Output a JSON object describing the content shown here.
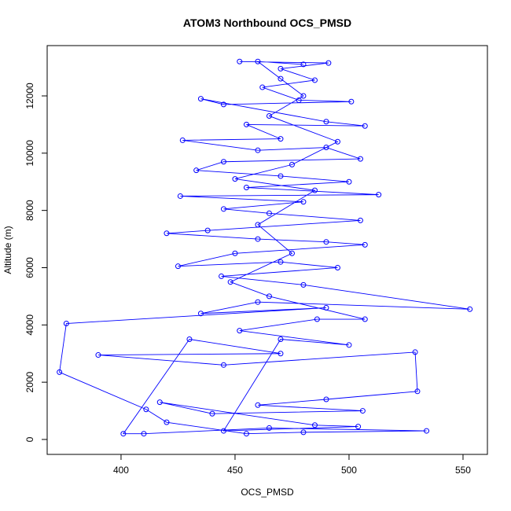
{
  "chart_data": {
    "type": "line",
    "title": "ATOM3 Northbound OCS_PMSD",
    "x_label": "OCS_PMSD",
    "y_label": "Altitude (m)",
    "color": "#0000ff",
    "xlim": [
      367.6,
      560.7
    ],
    "ylim": [
      -522,
      13757
    ],
    "xticks": [
      400,
      450,
      500,
      550
    ],
    "yticks": [
      0,
      2000,
      4000,
      6000,
      8000,
      10000,
      12000
    ],
    "x": [
      452,
      491,
      470,
      485,
      462,
      478,
      501,
      445,
      435,
      490,
      507,
      455,
      470,
      427,
      460,
      490,
      505,
      445,
      433,
      470,
      500,
      455,
      513,
      426,
      480,
      445,
      465,
      505,
      438,
      420,
      460,
      490,
      507,
      450,
      425,
      470,
      495,
      444,
      480,
      553,
      460,
      435,
      490,
      376,
      373,
      411,
      420,
      455,
      480,
      534,
      465,
      410,
      401,
      430,
      470,
      390,
      445,
      529,
      530,
      490,
      460,
      506,
      440,
      417,
      485,
      504,
      445,
      470,
      500,
      452,
      486,
      507,
      465,
      448,
      475,
      460,
      485,
      450,
      475,
      495,
      465,
      480,
      470,
      460,
      480
    ],
    "series": [
      {
        "values": [
          13200,
          13150,
          12950,
          12550,
          12300,
          11850,
          11800,
          11700,
          11900,
          11100,
          10950,
          11000,
          10500,
          10450,
          10100,
          10200,
          9800,
          9700,
          9400,
          9200,
          9000,
          8800,
          8550,
          8500,
          8300,
          8050,
          7900,
          7650,
          7300,
          7200,
          7000,
          6900,
          6800,
          6500,
          6050,
          6200,
          6000,
          5700,
          5400,
          4550,
          4800,
          4400,
          4600,
          4050,
          2350,
          1050,
          600,
          200,
          250,
          300,
          400,
          200,
          200,
          3500,
          3000,
          2950,
          2600,
          3050,
          1680,
          1400,
          1200,
          1000,
          900,
          1300,
          500,
          450,
          300,
          3500,
          3300,
          3800,
          4200,
          4200,
          5000,
          5500,
          6500,
          7500,
          8700,
          9100,
          9600,
          10400,
          11300,
          12000,
          12600,
          13200,
          13100
        ]
      }
    ]
  }
}
